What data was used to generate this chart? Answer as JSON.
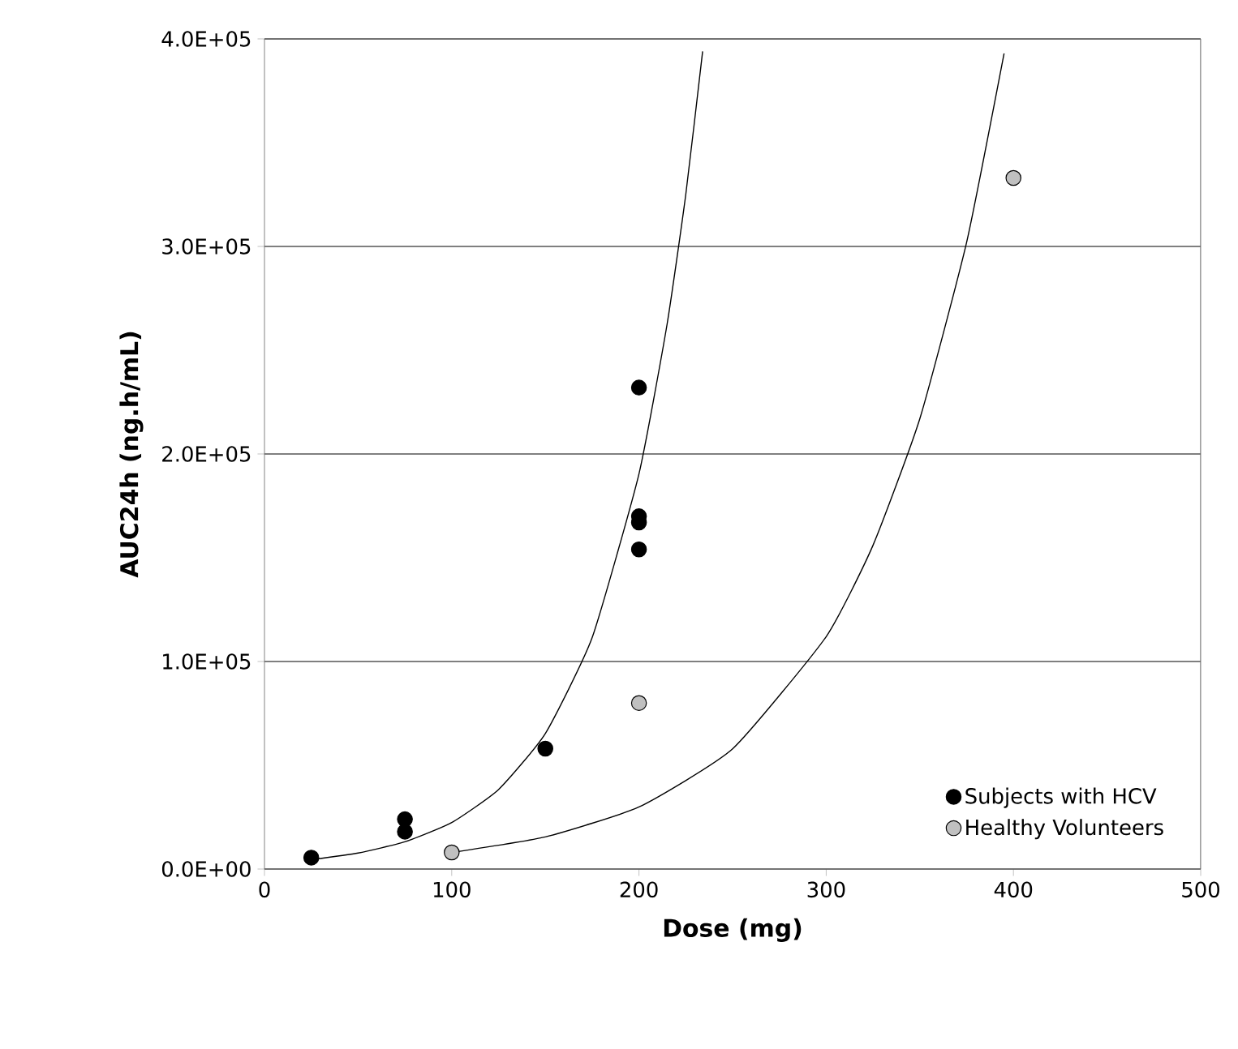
{
  "chart_data": {
    "type": "scatter",
    "xlabel": "Dose (mg)",
    "ylabel": "AUC24h (ng.h/mL)",
    "xlim": [
      0,
      500
    ],
    "xticks": [
      0,
      100,
      200,
      300,
      400,
      500
    ],
    "ylim": [
      0,
      400000
    ],
    "yticks": [
      {
        "value": 0,
        "label": "0.0E+00"
      },
      {
        "value": 100000,
        "label": "1.0E+05"
      },
      {
        "value": 200000,
        "label": "2.0E+05"
      },
      {
        "value": 300000,
        "label": "3.0E+05"
      },
      {
        "value": 400000,
        "label": "4.0E+05"
      }
    ],
    "grid": "y",
    "legend": "bottom right",
    "series": [
      {
        "type": "line",
        "marker": "none",
        "color": "#000000",
        "x": [
          25,
          50,
          75,
          100,
          125,
          150,
          175,
          200,
          215,
          225,
          234
        ],
        "values": [
          4500,
          7700,
          13100,
          22400,
          38300,
          65300,
          111500,
          190400,
          262400,
          325000,
          394000
        ]
      },
      {
        "type": "line",
        "marker": "none",
        "color": "#000000",
        "x": [
          100,
          150,
          200,
          250,
          300,
          325,
          350,
          375,
          395
        ],
        "values": [
          8000,
          15500,
          29900,
          57900,
          112000,
          156000,
          217000,
          302000,
          393000
        ]
      },
      {
        "marker": "circle",
        "name": "Subjects with HCV",
        "color": "#000000",
        "x": [
          25,
          75,
          75,
          150,
          200,
          200,
          200,
          200
        ],
        "values": [
          5500,
          24000,
          18000,
          58000,
          232000,
          170000,
          167000,
          154000
        ]
      },
      {
        "marker": "circle",
        "name": "Healthy Volunteers",
        "color": "#c0c0c0",
        "x": [
          100,
          200,
          400
        ],
        "values": [
          8000,
          80000,
          333000
        ]
      }
    ]
  }
}
